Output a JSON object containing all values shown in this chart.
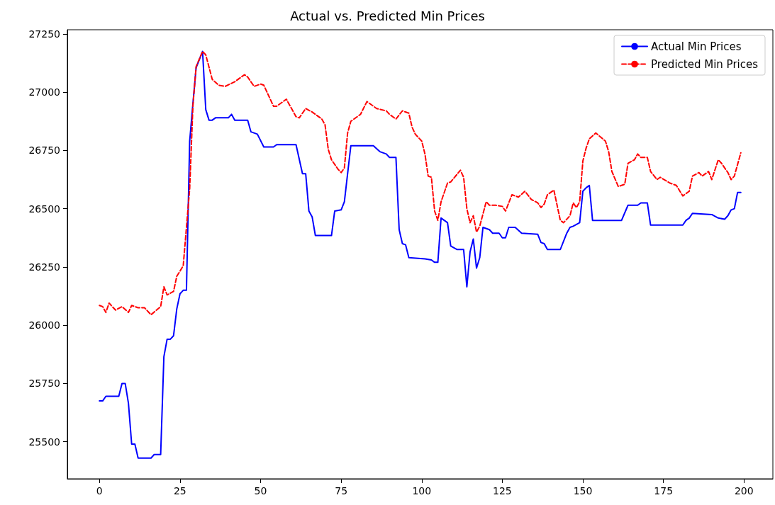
{
  "chart_data": {
    "type": "line",
    "title": "Actual vs. Predicted Min Prices",
    "xlim": [
      -9.95,
      208.95
    ],
    "xticks": [
      0,
      25,
      50,
      75,
      100,
      125,
      150,
      175,
      200
    ],
    "ylim": [
      25341,
      27268
    ],
    "yticks": [
      25500,
      25750,
      26000,
      26250,
      26500,
      26750,
      27000,
      27250
    ],
    "legend": "top right",
    "series": [
      {
        "name": "Actual Min Prices",
        "color": "#0000ff",
        "line_style": "solid",
        "x": [
          0,
          1,
          2,
          6,
          7,
          8,
          9,
          10,
          11,
          12,
          16,
          17,
          19,
          20,
          21,
          22,
          23,
          24,
          25,
          26,
          27,
          28,
          29,
          30,
          31,
          32,
          33,
          34,
          35,
          36,
          40,
          41,
          42,
          46,
          47,
          49,
          51,
          54,
          55,
          61,
          63,
          64,
          65,
          66,
          67,
          72,
          73,
          75,
          76,
          78,
          85,
          87,
          89,
          90,
          92,
          93,
          94,
          95,
          96,
          101,
          103,
          104,
          105,
          106,
          108,
          109,
          111,
          113,
          114,
          115,
          116,
          117,
          118,
          119,
          121,
          122,
          124,
          125,
          126,
          127,
          129,
          131,
          136,
          137,
          138,
          139,
          143,
          145,
          146,
          147,
          149,
          150,
          151,
          152,
          153,
          159,
          160,
          162,
          164,
          167,
          168,
          170,
          171,
          181,
          182,
          183,
          184,
          190,
          192,
          194,
          195,
          196,
          197,
          198,
          199
        ],
        "values": [
          25675,
          25675,
          25695,
          25695,
          25750,
          25750,
          25665,
          25490,
          25490,
          25430,
          25430,
          25445,
          25445,
          25865,
          25940,
          25940,
          25955,
          26070,
          26135,
          26150,
          26150,
          26790,
          26950,
          27105,
          27140,
          27175,
          26925,
          26880,
          26880,
          26890,
          26890,
          26905,
          26880,
          26880,
          26830,
          26820,
          26765,
          26765,
          26775,
          26775,
          26650,
          26650,
          26490,
          26465,
          26385,
          26385,
          26490,
          26495,
          26530,
          26770,
          26770,
          26745,
          26735,
          26720,
          26720,
          26410,
          26350,
          26345,
          26290,
          26285,
          26280,
          26270,
          26270,
          26460,
          26440,
          26340,
          26325,
          26325,
          26165,
          26315,
          26370,
          26245,
          26290,
          26420,
          26410,
          26395,
          26395,
          26375,
          26375,
          26420,
          26420,
          26395,
          26390,
          26355,
          26350,
          26325,
          26325,
          26395,
          26420,
          26425,
          26440,
          26575,
          26590,
          26600,
          26450,
          26450,
          26450,
          26450,
          26515,
          26515,
          26525,
          26525,
          26430,
          26430,
          26450,
          26460,
          26480,
          26475,
          26460,
          26455,
          26470,
          26495,
          26500,
          26570,
          26570
        ]
      },
      {
        "name": "Predicted Min Prices",
        "color": "#ff0000",
        "line_style": "dashed",
        "x": [
          0,
          1,
          2,
          3,
          5,
          7,
          9,
          10,
          12,
          14,
          16,
          19,
          20,
          21,
          23,
          24,
          26,
          28,
          29,
          30,
          32,
          33,
          35,
          37,
          39,
          42,
          45,
          46,
          48,
          50,
          51,
          54,
          55,
          57,
          58,
          61,
          62,
          64,
          66,
          69,
          70,
          71,
          72,
          74,
          75,
          76,
          77,
          78,
          81,
          83,
          85,
          86,
          89,
          90,
          92,
          94,
          96,
          97,
          98,
          100,
          101,
          102,
          103,
          104,
          105,
          106,
          108,
          109,
          112,
          113,
          114,
          115,
          116,
          117,
          118,
          120,
          121,
          123,
          125,
          126,
          128,
          130,
          132,
          134,
          136,
          137,
          138,
          139,
          141,
          143,
          144,
          146,
          147,
          148,
          149,
          150,
          151,
          152,
          154,
          157,
          158,
          159,
          161,
          163,
          164,
          166,
          167,
          168,
          170,
          171,
          173,
          174,
          177,
          179,
          181,
          183,
          184,
          186,
          187,
          189,
          190,
          192,
          193,
          195,
          196,
          197,
          199
        ],
        "values": [
          26085,
          26080,
          26055,
          26095,
          26065,
          26080,
          26055,
          26085,
          26075,
          26075,
          26045,
          26080,
          26165,
          26130,
          26145,
          26210,
          26255,
          26585,
          26940,
          27110,
          27175,
          27160,
          27055,
          27030,
          27025,
          27045,
          27075,
          27065,
          27025,
          27035,
          27030,
          26940,
          26940,
          26960,
          26970,
          26895,
          26890,
          26930,
          26915,
          26885,
          26860,
          26755,
          26710,
          26670,
          26655,
          26675,
          26825,
          26875,
          26905,
          26960,
          26940,
          26930,
          26920,
          26905,
          26885,
          26920,
          26910,
          26850,
          26820,
          26790,
          26735,
          26640,
          26635,
          26490,
          26450,
          26530,
          26610,
          26615,
          26665,
          26635,
          26500,
          26440,
          26470,
          26400,
          26425,
          26530,
          26515,
          26515,
          26510,
          26490,
          26560,
          26550,
          26575,
          26540,
          26525,
          26505,
          26520,
          26560,
          26580,
          26450,
          26440,
          26470,
          26525,
          26505,
          26530,
          26705,
          26760,
          26800,
          26825,
          26790,
          26745,
          26660,
          26595,
          26605,
          26695,
          26710,
          26735,
          26720,
          26720,
          26660,
          26625,
          26635,
          26610,
          26600,
          26555,
          26575,
          26640,
          26655,
          26640,
          26660,
          26625,
          26710,
          26695,
          26655,
          26625,
          26640,
          26740
        ]
      }
    ]
  }
}
